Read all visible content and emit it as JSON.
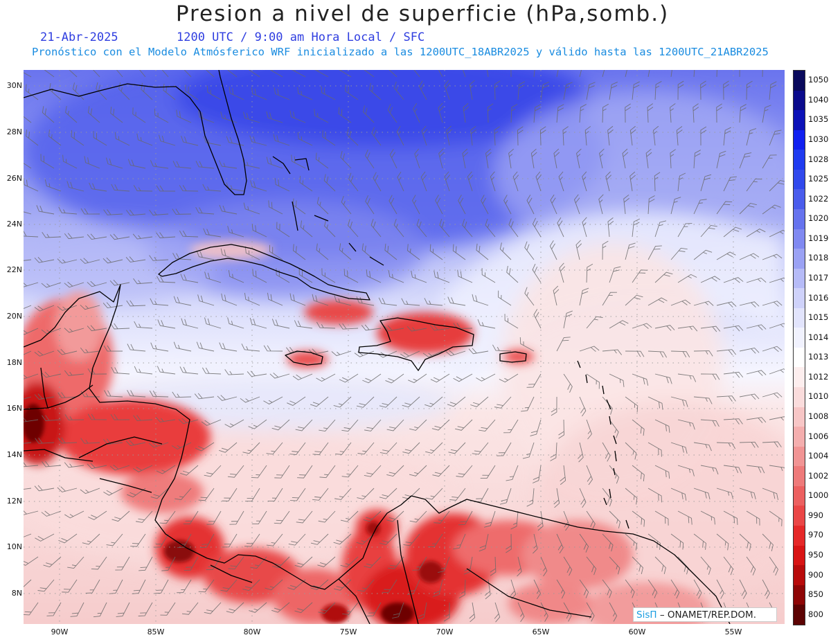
{
  "header": {
    "title": "Presion a nivel de superficie (hPa,somb.)",
    "date": "21-Abr-2025",
    "time_line": "1200 UTC / 9:00 am Hora Local / SFC",
    "forecast_line": "Pronóstico con el Modelo Atmósferico WRF inicializado a las 1200UTC_18ABR2025 y válido hasta las  1200UTC_21ABR2025"
  },
  "map": {
    "lat_labels": [
      "30N",
      "28N",
      "26N",
      "24N",
      "22N",
      "20N",
      "18N",
      "16N",
      "14N",
      "12N",
      "10N",
      "8N"
    ],
    "lon_labels": [
      "90W",
      "85W",
      "80W",
      "75W",
      "70W",
      "65W",
      "60W",
      "55W"
    ],
    "graticule": "dotted"
  },
  "colorbar": {
    "levels": [
      "1050",
      "1040",
      "1035",
      "1030",
      "1028",
      "1025",
      "1022",
      "1020",
      "1019",
      "1018",
      "1017",
      "1016",
      "1015",
      "1014",
      "1013",
      "1012",
      "1010",
      "1008",
      "1006",
      "1004",
      "1002",
      "1000",
      "990",
      "970",
      "950",
      "900",
      "850",
      "800"
    ],
    "colors": [
      "#0a0a5c",
      "#0b0b8c",
      "#0c12b8",
      "#1020f0",
      "#1f3bf0",
      "#3149ec",
      "#4a5cec",
      "#6673ee",
      "#8089f1",
      "#9ba2f4",
      "#b6bbf7",
      "#cfd2fa",
      "#e2e4fc",
      "#f1f2fe",
      "#ffffff",
      "#fdeeee",
      "#fadcdc",
      "#f7c6c6",
      "#f4aeae",
      "#f19494",
      "#ee7a7a",
      "#ec6060",
      "#ea4646",
      "#e52828",
      "#d81414",
      "#b80b0b",
      "#8e0606",
      "#5c0303"
    ]
  },
  "credit": {
    "brand": "SisΠ",
    "text": "– ONAMET/REP.DOM."
  }
}
